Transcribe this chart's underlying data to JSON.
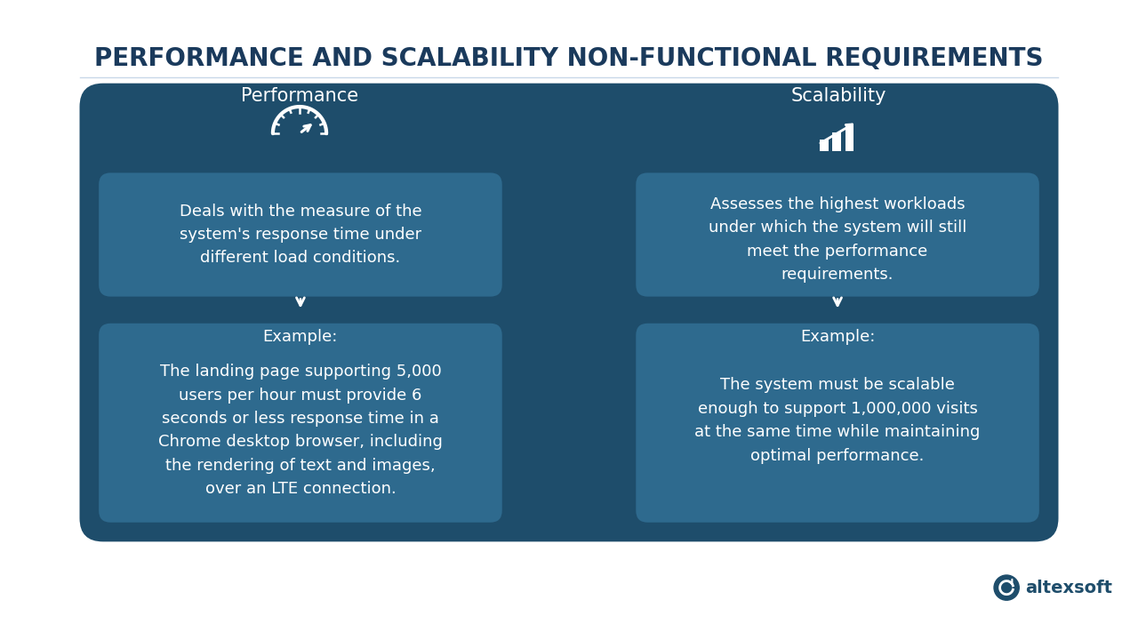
{
  "title": "PERFORMANCE AND SCALABILITY NON-FUNCTIONAL REQUIREMENTS",
  "title_color": "#1a3a5c",
  "title_fontsize": 20,
  "bg_color": "#ffffff",
  "outer_bg": "#1e4d6b",
  "card_bg": "#2e6a8e",
  "left_header": "Performance",
  "right_header": "Scalability",
  "left_desc": "Deals with the measure of the\nsystem's response time under\ndifferent load conditions.",
  "right_desc": "Assesses the highest workloads\nunder which the system will still\nmeet the performance\nrequirements.",
  "left_example_title": "Example:",
  "left_example_body": "The landing page supporting 5,000\nusers per hour must provide 6\nseconds or less response time in a\nChrome desktop browser, including\nthe rendering of text and images,\nover an LTE connection.",
  "right_example_title": "Example:",
  "right_example_body": "The system must be scalable\nenough to support 1,000,000 visits\nat the same time while maintaining\noptimal performance.",
  "text_color": "#ffffff",
  "arrow_color": "#ffffff",
  "logo_text": "altexsoft",
  "logo_color": "#1e4d6b"
}
